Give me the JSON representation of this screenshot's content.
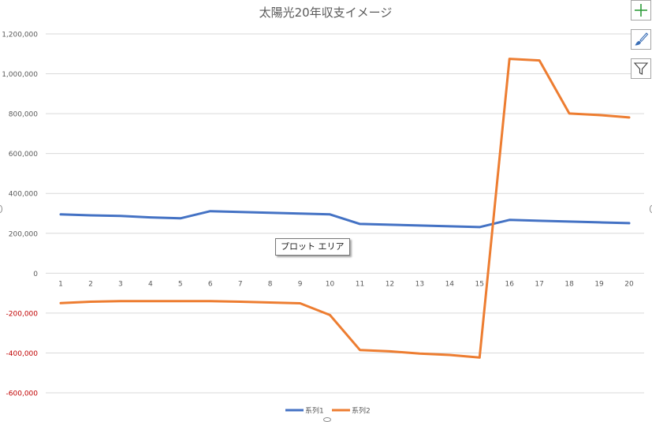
{
  "chart_data": {
    "type": "line",
    "title": "太陽光20年収支イメージ",
    "categories": [
      "1",
      "2",
      "3",
      "4",
      "5",
      "6",
      "7",
      "8",
      "9",
      "10",
      "11",
      "12",
      "13",
      "14",
      "15",
      "16",
      "17",
      "18",
      "19",
      "20"
    ],
    "y_ticks": [
      1200000,
      1000000,
      800000,
      600000,
      400000,
      200000,
      0,
      -200000,
      -400000,
      -600000
    ],
    "y_tick_labels": [
      "1,200,000",
      "1,000,000",
      "800,000",
      "600,000",
      "400,000",
      "200,000",
      "0",
      "-200,000",
      "-400,000",
      "-600,000"
    ],
    "ylim": [
      -600000,
      1200000
    ],
    "grid": true,
    "legend_position": "bottom",
    "negative_tick_color": "#c00000",
    "series": [
      {
        "name": "系列1",
        "color": "#4472c4",
        "values": [
          295000,
          290000,
          287000,
          280000,
          275000,
          311000,
          307000,
          303000,
          299000,
          295000,
          247000,
          243000,
          239000,
          235000,
          231000,
          267000,
          263000,
          259000,
          255000,
          251000
        ]
      },
      {
        "name": "系列2",
        "color": "#ed7d31",
        "values": [
          -150000,
          -143000,
          -140000,
          -140000,
          -140000,
          -140000,
          -143000,
          -147000,
          -151000,
          -210000,
          -385000,
          -392000,
          -403000,
          -410000,
          -423000,
          1075000,
          1067000,
          801000,
          793000,
          781000
        ]
      }
    ]
  },
  "tooltip": {
    "text": "プロット エリア"
  },
  "side_buttons": {
    "add_icon": "plus-icon",
    "style_icon": "brush-icon",
    "filter_icon": "funnel-icon"
  }
}
